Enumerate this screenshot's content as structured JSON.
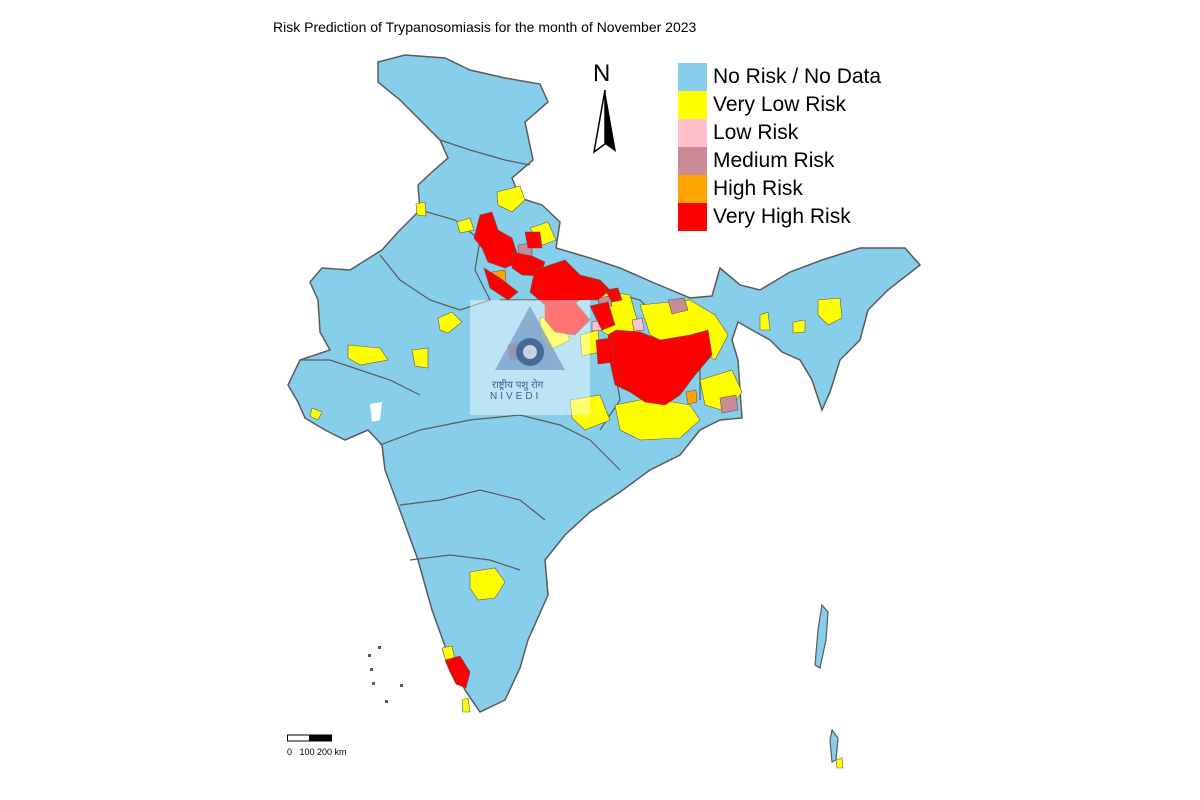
{
  "map": {
    "title": "Risk Prediction of Trypanosomiasis for the month of November 2023",
    "north_label": "N",
    "legend": [
      {
        "label": "No Risk / No Data",
        "color": "#87CEEB"
      },
      {
        "label": "Very Low Risk",
        "color": "#FFFF00"
      },
      {
        "label": "Low Risk",
        "color": "#FFC0CB"
      },
      {
        "label": "Medium Risk",
        "color": "#C98C96"
      },
      {
        "label": "High Risk",
        "color": "#FFA500"
      },
      {
        "label": "Very High Risk",
        "color": "#FF0000"
      }
    ],
    "scale": {
      "labels": "0   100 200 km"
    },
    "watermark": {
      "line1": "राष्ट्रीय पशु रोग",
      "line2": "NIVEDI"
    },
    "colors": {
      "border": "#5a5a5a",
      "background": "#ffffff"
    }
  }
}
